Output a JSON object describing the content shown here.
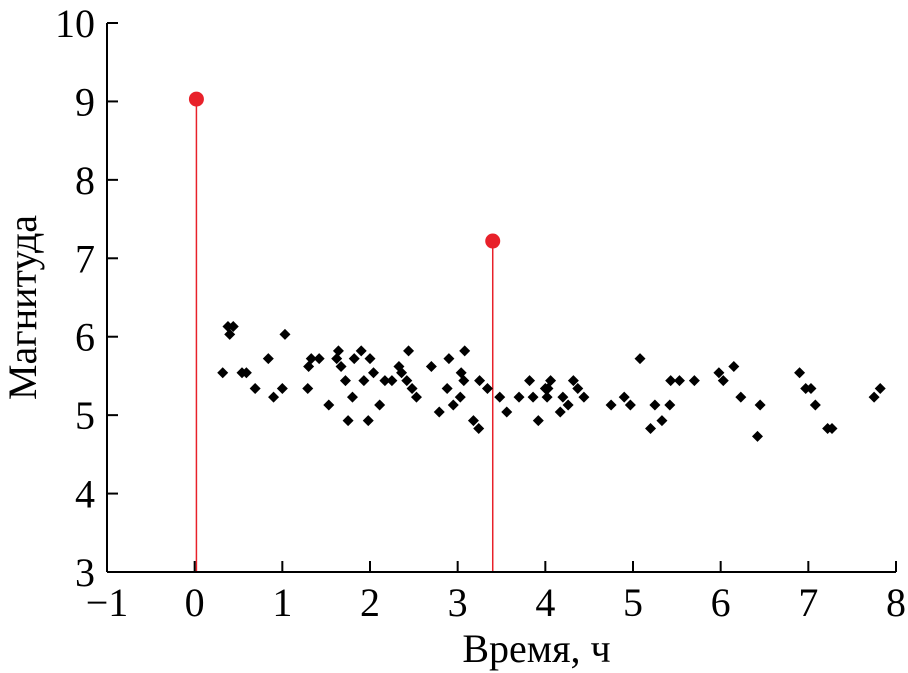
{
  "chart_data": {
    "type": "scatter",
    "xlabel": "Время, ч",
    "ylabel": "Магнитуда",
    "xlim": [
      -1,
      8
    ],
    "ylim": [
      3,
      10
    ],
    "xticks": [
      -1,
      0,
      1,
      2,
      3,
      4,
      5,
      6,
      7,
      8
    ],
    "xtick_labels": [
      "−1",
      "0",
      "1",
      "2",
      "3",
      "4",
      "5",
      "6",
      "7",
      "8"
    ],
    "yticks": [
      3,
      4,
      5,
      6,
      7,
      8,
      9,
      10
    ],
    "ytick_labels": [
      "3",
      "4",
      "5",
      "6",
      "7",
      "8",
      "9",
      "10"
    ],
    "grid": false,
    "series": [
      {
        "marker": "diamond",
        "color": "#000000",
        "points": [
          [
            0.32,
            5.54
          ],
          [
            0.38,
            6.13
          ],
          [
            0.4,
            6.03
          ],
          [
            0.44,
            6.13
          ],
          [
            0.54,
            5.54
          ],
          [
            0.59,
            5.54
          ],
          [
            0.69,
            5.34
          ],
          [
            0.84,
            5.72
          ],
          [
            0.9,
            5.23
          ],
          [
            1.0,
            5.34
          ],
          [
            1.03,
            6.03
          ],
          [
            1.29,
            5.34
          ],
          [
            1.3,
            5.62
          ],
          [
            1.33,
            5.72
          ],
          [
            1.42,
            5.72
          ],
          [
            1.53,
            5.13
          ],
          [
            1.62,
            5.72
          ],
          [
            1.64,
            5.82
          ],
          [
            1.67,
            5.62
          ],
          [
            1.72,
            5.44
          ],
          [
            1.75,
            4.93
          ],
          [
            1.8,
            5.23
          ],
          [
            1.82,
            5.72
          ],
          [
            1.9,
            5.82
          ],
          [
            1.93,
            5.44
          ],
          [
            1.98,
            4.93
          ],
          [
            2.0,
            5.72
          ],
          [
            2.04,
            5.54
          ],
          [
            2.11,
            5.13
          ],
          [
            2.17,
            5.44
          ],
          [
            2.25,
            5.44
          ],
          [
            2.33,
            5.62
          ],
          [
            2.36,
            5.54
          ],
          [
            2.42,
            5.44
          ],
          [
            2.44,
            5.82
          ],
          [
            2.48,
            5.34
          ],
          [
            2.53,
            5.23
          ],
          [
            2.7,
            5.62
          ],
          [
            2.79,
            5.04
          ],
          [
            2.88,
            5.34
          ],
          [
            2.9,
            5.72
          ],
          [
            2.95,
            5.13
          ],
          [
            3.03,
            5.23
          ],
          [
            3.04,
            5.54
          ],
          [
            3.07,
            5.44
          ],
          [
            3.08,
            5.82
          ],
          [
            3.18,
            4.93
          ],
          [
            3.24,
            4.83
          ],
          [
            3.25,
            5.44
          ],
          [
            3.34,
            5.34
          ],
          [
            3.48,
            5.23
          ],
          [
            3.56,
            5.04
          ],
          [
            3.7,
            5.23
          ],
          [
            3.82,
            5.44
          ],
          [
            3.86,
            5.23
          ],
          [
            3.92,
            4.93
          ],
          [
            4.0,
            5.34
          ],
          [
            4.02,
            5.23
          ],
          [
            4.03,
            5.34
          ],
          [
            4.06,
            5.44
          ],
          [
            4.17,
            5.04
          ],
          [
            4.2,
            5.23
          ],
          [
            4.26,
            5.13
          ],
          [
            4.32,
            5.44
          ],
          [
            4.37,
            5.34
          ],
          [
            4.44,
            5.23
          ],
          [
            4.75,
            5.13
          ],
          [
            4.9,
            5.23
          ],
          [
            4.97,
            5.13
          ],
          [
            5.08,
            5.72
          ],
          [
            5.2,
            4.83
          ],
          [
            5.25,
            5.13
          ],
          [
            5.33,
            4.93
          ],
          [
            5.42,
            5.13
          ],
          [
            5.43,
            5.44
          ],
          [
            5.53,
            5.44
          ],
          [
            5.7,
            5.44
          ],
          [
            5.98,
            5.54
          ],
          [
            6.03,
            5.44
          ],
          [
            6.15,
            5.62
          ],
          [
            6.23,
            5.23
          ],
          [
            6.42,
            4.73
          ],
          [
            6.45,
            5.13
          ],
          [
            6.9,
            5.54
          ],
          [
            6.97,
            5.34
          ],
          [
            7.03,
            5.34
          ],
          [
            7.08,
            5.13
          ],
          [
            7.22,
            4.83
          ],
          [
            7.27,
            4.83
          ],
          [
            7.75,
            5.23
          ],
          [
            7.82,
            5.34
          ]
        ]
      },
      {
        "marker": "circle",
        "color": "#e8212a",
        "stems": true,
        "points": [
          [
            0.02,
            9.03
          ],
          [
            3.4,
            7.22
          ]
        ]
      }
    ]
  }
}
